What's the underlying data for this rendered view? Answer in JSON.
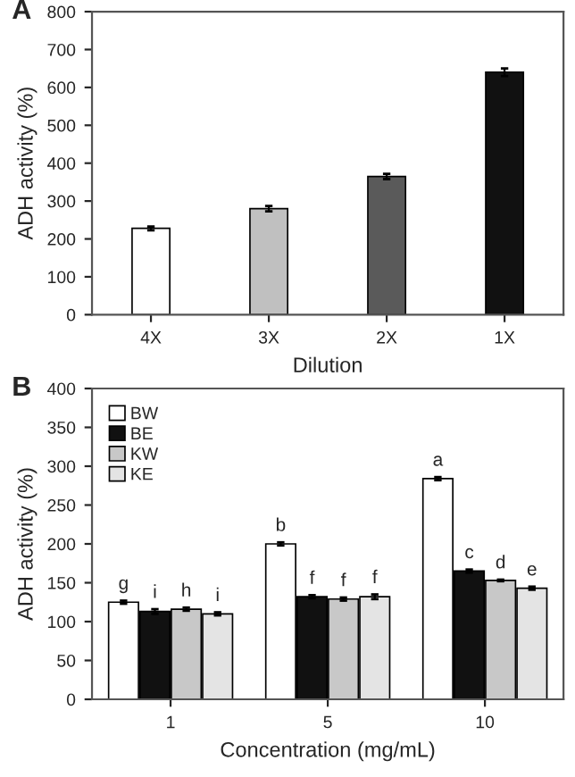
{
  "chart_data": [
    {
      "type": "bar",
      "title": "A",
      "categories": [
        "4X",
        "3X",
        "2X",
        "1X"
      ],
      "values": [
        228,
        280,
        365,
        640
      ],
      "errors": [
        5,
        7,
        7,
        10
      ],
      "colors": [
        "#ffffff",
        "#c0c0c0",
        "#5a5a5a",
        "#111111"
      ],
      "xlabel": "Dilution",
      "ylabel": "ADH activity (%)",
      "ylim": [
        0,
        800
      ],
      "yticks": [
        0,
        100,
        200,
        300,
        400,
        500,
        600,
        700,
        800
      ],
      "grid": false,
      "legend": false
    },
    {
      "type": "bar",
      "title": "B",
      "categories": [
        "1",
        "5",
        "10"
      ],
      "xlabel": "Concentration (mg/mL)",
      "ylabel": "ADH activity (%)",
      "ylim": [
        0,
        400
      ],
      "yticks": [
        0,
        50,
        100,
        150,
        200,
        250,
        300,
        350,
        400
      ],
      "grid": false,
      "legend": "top left",
      "series": [
        {
          "name": "BW",
          "color": "#ffffff",
          "values": [
            125,
            200,
            284
          ],
          "errors": [
            2,
            2,
            2
          ],
          "value_labels": [
            "g",
            "b",
            "a"
          ]
        },
        {
          "name": "BE",
          "color": "#111111",
          "values": [
            113,
            132,
            165
          ],
          "errors": [
            3,
            2,
            2
          ],
          "value_labels": [
            "i",
            "f",
            "c"
          ]
        },
        {
          "name": "KW",
          "color": "#c8c8c8",
          "values": [
            116,
            129,
            153
          ],
          "errors": [
            2,
            2,
            1
          ],
          "value_labels": [
            "h",
            "f",
            "d"
          ]
        },
        {
          "name": "KE",
          "color": "#e4e4e4",
          "values": [
            110,
            132,
            143
          ],
          "errors": [
            2,
            3,
            2
          ],
          "value_labels": [
            "i",
            "f",
            "e"
          ]
        }
      ]
    }
  ]
}
